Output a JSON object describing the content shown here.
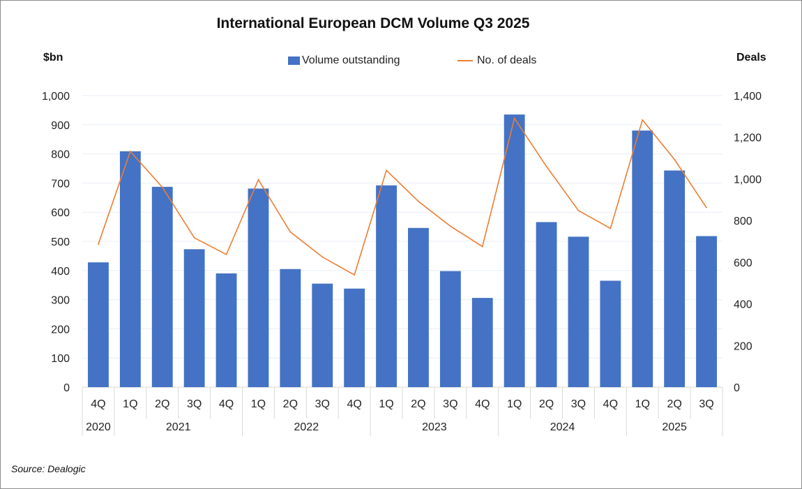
{
  "chart_data": {
    "type": "bar+line",
    "title": "International European DCM Volume Q3 2025",
    "left_axis_label": "$bn",
    "right_axis_label": "Deals",
    "left_ylim": [
      0,
      1000
    ],
    "left_ticks": [
      "0",
      "100",
      "200",
      "300",
      "400",
      "500",
      "600",
      "700",
      "800",
      "900",
      "1,000"
    ],
    "right_ylim": [
      0,
      1400
    ],
    "right_ticks": [
      "0",
      "200",
      "400",
      "600",
      "800",
      "1,000",
      "1,200",
      "1,400"
    ],
    "grid": true,
    "legend_position": "top",
    "categories": [
      "4Q",
      "1Q",
      "2Q",
      "3Q",
      "4Q",
      "1Q",
      "2Q",
      "3Q",
      "4Q",
      "1Q",
      "2Q",
      "3Q",
      "4Q",
      "1Q",
      "2Q",
      "3Q",
      "4Q",
      "1Q",
      "2Q",
      "3Q"
    ],
    "year_groups": [
      {
        "label": "2020",
        "count": 1
      },
      {
        "label": "2021",
        "count": 4
      },
      {
        "label": "2022",
        "count": 4
      },
      {
        "label": "2023",
        "count": 4
      },
      {
        "label": "2024",
        "count": 4
      },
      {
        "label": "2025",
        "count": 3
      }
    ],
    "series": [
      {
        "name": "Volume outstanding",
        "type": "bar",
        "axis": "left",
        "color": "#4472c4",
        "values": [
          428,
          809,
          687,
          473,
          390,
          681,
          405,
          355,
          338,
          692,
          546,
          398,
          306,
          935,
          566,
          516,
          365,
          880,
          743,
          518
        ]
      },
      {
        "name": "No. of deals",
        "type": "line",
        "axis": "right",
        "color": "#ed7d31",
        "values": [
          686,
          1132,
          960,
          717,
          637,
          996,
          745,
          625,
          539,
          1041,
          892,
          773,
          675,
          1291,
          1060,
          848,
          762,
          1283,
          1093,
          862
        ]
      }
    ],
    "source": "Source: Dealogic"
  }
}
